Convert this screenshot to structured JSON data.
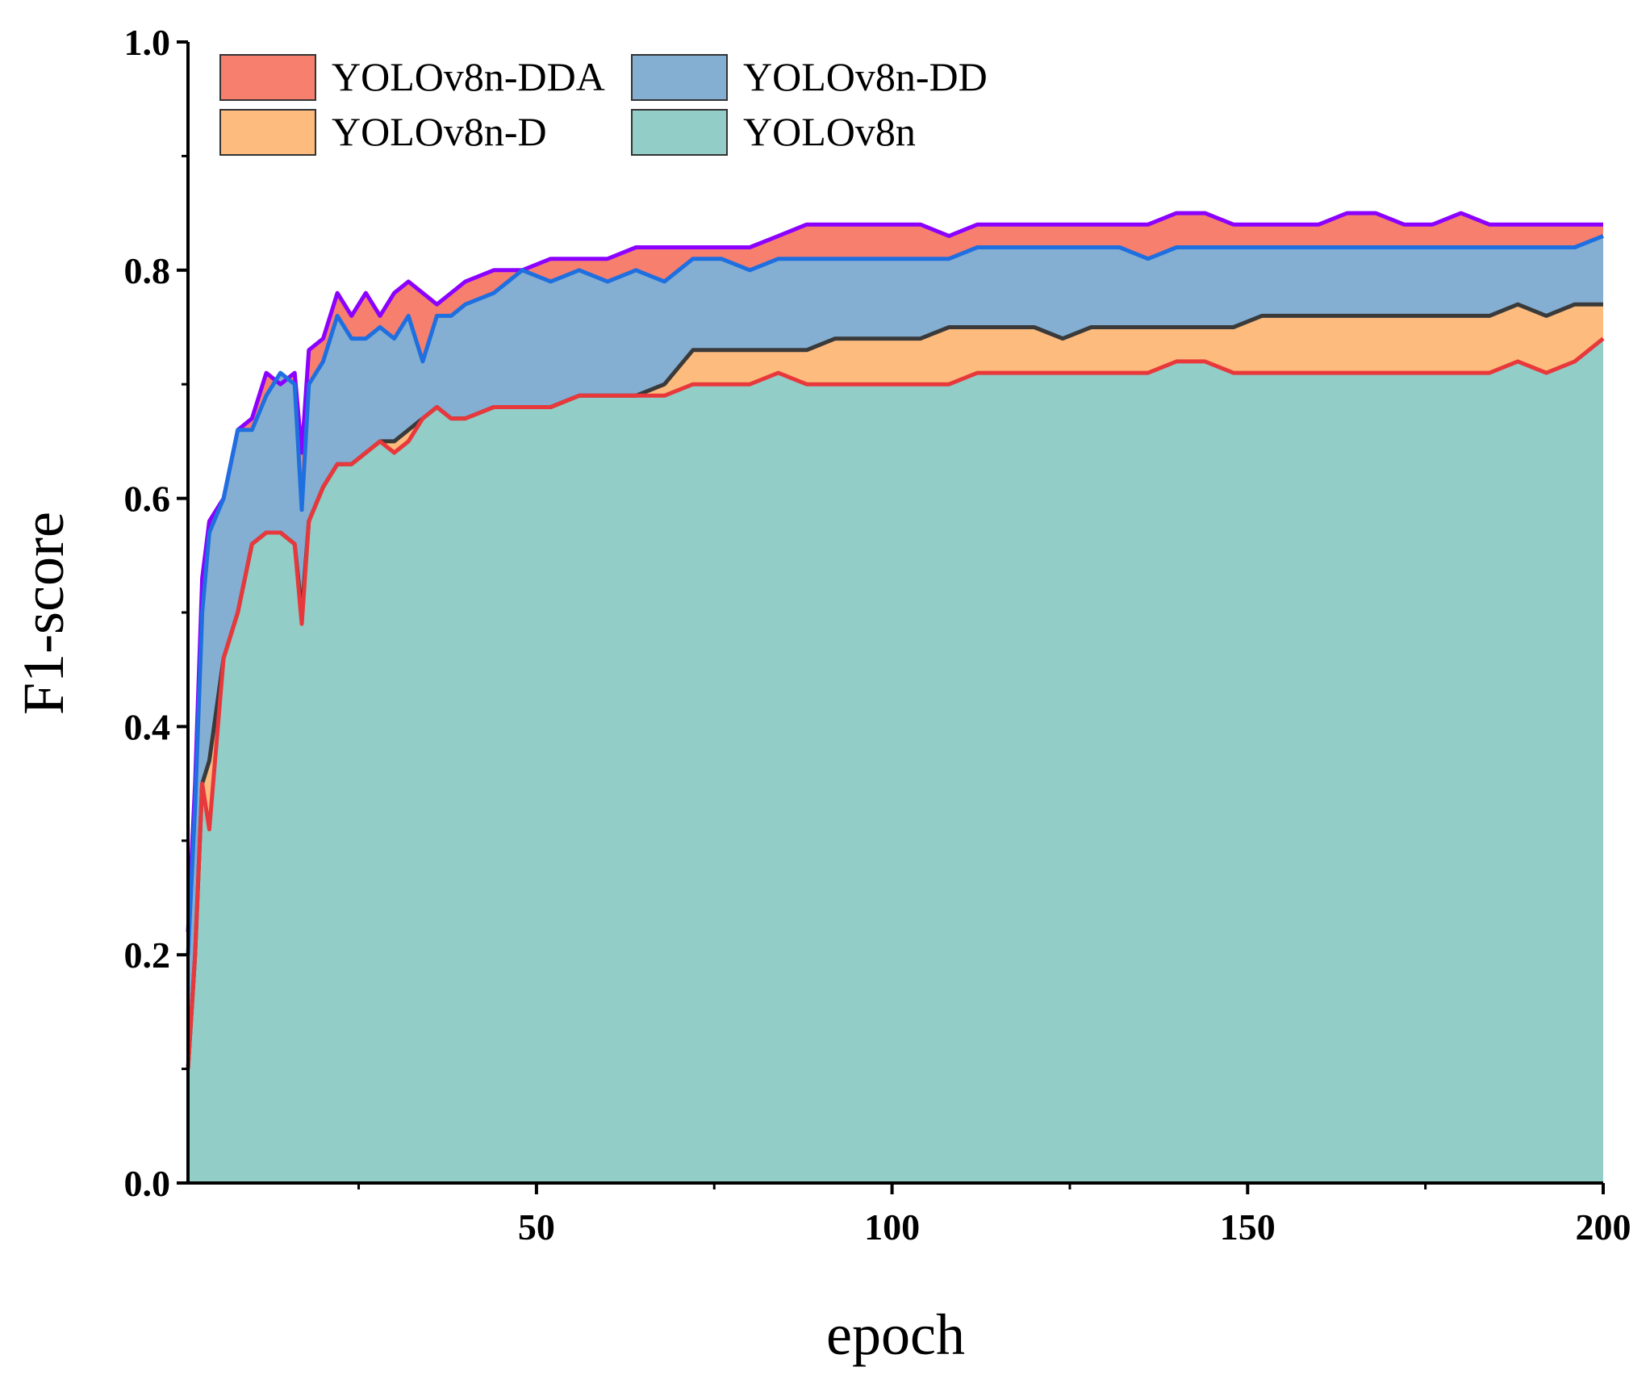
{
  "chart_data": {
    "type": "area",
    "title": "",
    "xlabel": "epoch",
    "ylabel": "F1-score",
    "xlim": [
      1,
      200
    ],
    "ylim": [
      0,
      1.0
    ],
    "x_ticks": [
      50,
      100,
      150,
      200
    ],
    "x_minor_ticks": [
      25,
      75,
      125,
      175
    ],
    "y_ticks": [
      0.0,
      0.2,
      0.4,
      0.6,
      0.8,
      1.0
    ],
    "y_tick_labels": [
      "0.0",
      "0.2",
      "0.4",
      "0.6",
      "0.8",
      "1.0"
    ],
    "grid": false,
    "legend_position": "top-left",
    "legend": [
      {
        "name": "YOLOv8n-DDA",
        "color": "#f77f6e"
      },
      {
        "name": "YOLOv8n-DD",
        "color": "#84aed2"
      },
      {
        "name": "YOLOv8n-D",
        "color": "#fdbb7d"
      },
      {
        "name": "YOLOv8n",
        "color": "#92cdc7"
      }
    ],
    "series": [
      {
        "name": "YOLOv8n-DDA",
        "fill": "#f77f6e",
        "line": "#8b00ff",
        "x": [
          1,
          2,
          3,
          4,
          6,
          8,
          10,
          12,
          14,
          16,
          17,
          18,
          20,
          22,
          24,
          26,
          28,
          30,
          32,
          34,
          36,
          38,
          40,
          44,
          48,
          52,
          56,
          60,
          64,
          68,
          72,
          76,
          80,
          84,
          88,
          92,
          96,
          100,
          104,
          108,
          112,
          116,
          120,
          124,
          128,
          132,
          136,
          140,
          144,
          148,
          152,
          156,
          160,
          164,
          168,
          172,
          176,
          180,
          184,
          188,
          192,
          196,
          200
        ],
        "values": [
          0.22,
          0.35,
          0.53,
          0.58,
          0.6,
          0.66,
          0.67,
          0.71,
          0.7,
          0.71,
          0.64,
          0.73,
          0.74,
          0.78,
          0.76,
          0.78,
          0.76,
          0.78,
          0.79,
          0.78,
          0.77,
          0.78,
          0.79,
          0.8,
          0.8,
          0.81,
          0.81,
          0.81,
          0.82,
          0.82,
          0.82,
          0.82,
          0.82,
          0.83,
          0.84,
          0.84,
          0.84,
          0.84,
          0.84,
          0.83,
          0.84,
          0.84,
          0.84,
          0.84,
          0.84,
          0.84,
          0.84,
          0.85,
          0.85,
          0.84,
          0.84,
          0.84,
          0.84,
          0.85,
          0.85,
          0.84,
          0.84,
          0.85,
          0.84,
          0.84,
          0.84,
          0.84,
          0.84
        ]
      },
      {
        "name": "YOLOv8n-DD",
        "fill": "#84aed2",
        "line": "#1e6fe0",
        "x": [
          1,
          2,
          3,
          4,
          6,
          8,
          10,
          12,
          14,
          16,
          17,
          18,
          20,
          22,
          24,
          26,
          28,
          30,
          32,
          34,
          36,
          38,
          40,
          44,
          48,
          52,
          56,
          60,
          64,
          68,
          72,
          76,
          80,
          84,
          88,
          92,
          96,
          100,
          104,
          108,
          112,
          116,
          120,
          124,
          128,
          132,
          136,
          140,
          144,
          148,
          152,
          156,
          160,
          164,
          168,
          172,
          176,
          180,
          184,
          188,
          192,
          196,
          200
        ],
        "values": [
          0.2,
          0.33,
          0.5,
          0.57,
          0.6,
          0.66,
          0.66,
          0.69,
          0.71,
          0.7,
          0.59,
          0.7,
          0.72,
          0.76,
          0.74,
          0.74,
          0.75,
          0.74,
          0.76,
          0.72,
          0.76,
          0.76,
          0.77,
          0.78,
          0.8,
          0.79,
          0.8,
          0.79,
          0.8,
          0.79,
          0.81,
          0.81,
          0.8,
          0.81,
          0.81,
          0.81,
          0.81,
          0.81,
          0.81,
          0.81,
          0.82,
          0.82,
          0.82,
          0.82,
          0.82,
          0.82,
          0.81,
          0.82,
          0.82,
          0.82,
          0.82,
          0.82,
          0.82,
          0.82,
          0.82,
          0.82,
          0.82,
          0.82,
          0.82,
          0.82,
          0.82,
          0.82,
          0.83
        ]
      },
      {
        "name": "YOLOv8n-D",
        "fill": "#fdbb7d",
        "line": "#3a3a3a",
        "x": [
          1,
          2,
          3,
          4,
          6,
          8,
          10,
          12,
          14,
          16,
          17,
          18,
          20,
          22,
          24,
          26,
          28,
          30,
          32,
          34,
          36,
          38,
          40,
          44,
          48,
          52,
          56,
          60,
          64,
          68,
          72,
          76,
          80,
          84,
          88,
          92,
          96,
          100,
          104,
          108,
          112,
          116,
          120,
          124,
          128,
          132,
          136,
          140,
          144,
          148,
          152,
          156,
          160,
          164,
          168,
          172,
          176,
          180,
          184,
          188,
          192,
          196,
          200
        ],
        "values": [
          0.1,
          0.2,
          0.35,
          0.37,
          0.46,
          0.5,
          0.56,
          0.57,
          0.57,
          0.56,
          0.5,
          0.58,
          0.61,
          0.63,
          0.63,
          0.64,
          0.65,
          0.65,
          0.66,
          0.67,
          0.68,
          0.67,
          0.67,
          0.68,
          0.68,
          0.68,
          0.69,
          0.69,
          0.69,
          0.7,
          0.73,
          0.73,
          0.73,
          0.73,
          0.73,
          0.74,
          0.74,
          0.74,
          0.74,
          0.75,
          0.75,
          0.75,
          0.75,
          0.74,
          0.75,
          0.75,
          0.75,
          0.75,
          0.75,
          0.75,
          0.76,
          0.76,
          0.76,
          0.76,
          0.76,
          0.76,
          0.76,
          0.76,
          0.76,
          0.77,
          0.76,
          0.77,
          0.77
        ]
      },
      {
        "name": "YOLOv8n",
        "fill": "#92cdc7",
        "line": "#e8383b",
        "x": [
          1,
          2,
          3,
          4,
          6,
          8,
          10,
          12,
          14,
          16,
          17,
          18,
          20,
          22,
          24,
          26,
          28,
          30,
          32,
          34,
          36,
          38,
          40,
          44,
          48,
          52,
          56,
          60,
          64,
          68,
          72,
          76,
          80,
          84,
          88,
          92,
          96,
          100,
          104,
          108,
          112,
          116,
          120,
          124,
          128,
          132,
          136,
          140,
          144,
          148,
          152,
          156,
          160,
          164,
          168,
          172,
          176,
          180,
          184,
          188,
          192,
          196,
          200
        ],
        "values": [
          0.1,
          0.2,
          0.35,
          0.31,
          0.46,
          0.5,
          0.56,
          0.57,
          0.57,
          0.56,
          0.49,
          0.58,
          0.61,
          0.63,
          0.63,
          0.64,
          0.65,
          0.64,
          0.65,
          0.67,
          0.68,
          0.67,
          0.67,
          0.68,
          0.68,
          0.68,
          0.69,
          0.69,
          0.69,
          0.69,
          0.7,
          0.7,
          0.7,
          0.71,
          0.7,
          0.7,
          0.7,
          0.7,
          0.7,
          0.7,
          0.71,
          0.71,
          0.71,
          0.71,
          0.71,
          0.71,
          0.71,
          0.72,
          0.72,
          0.71,
          0.71,
          0.71,
          0.71,
          0.71,
          0.71,
          0.71,
          0.71,
          0.71,
          0.71,
          0.72,
          0.71,
          0.72,
          0.74
        ]
      }
    ]
  }
}
